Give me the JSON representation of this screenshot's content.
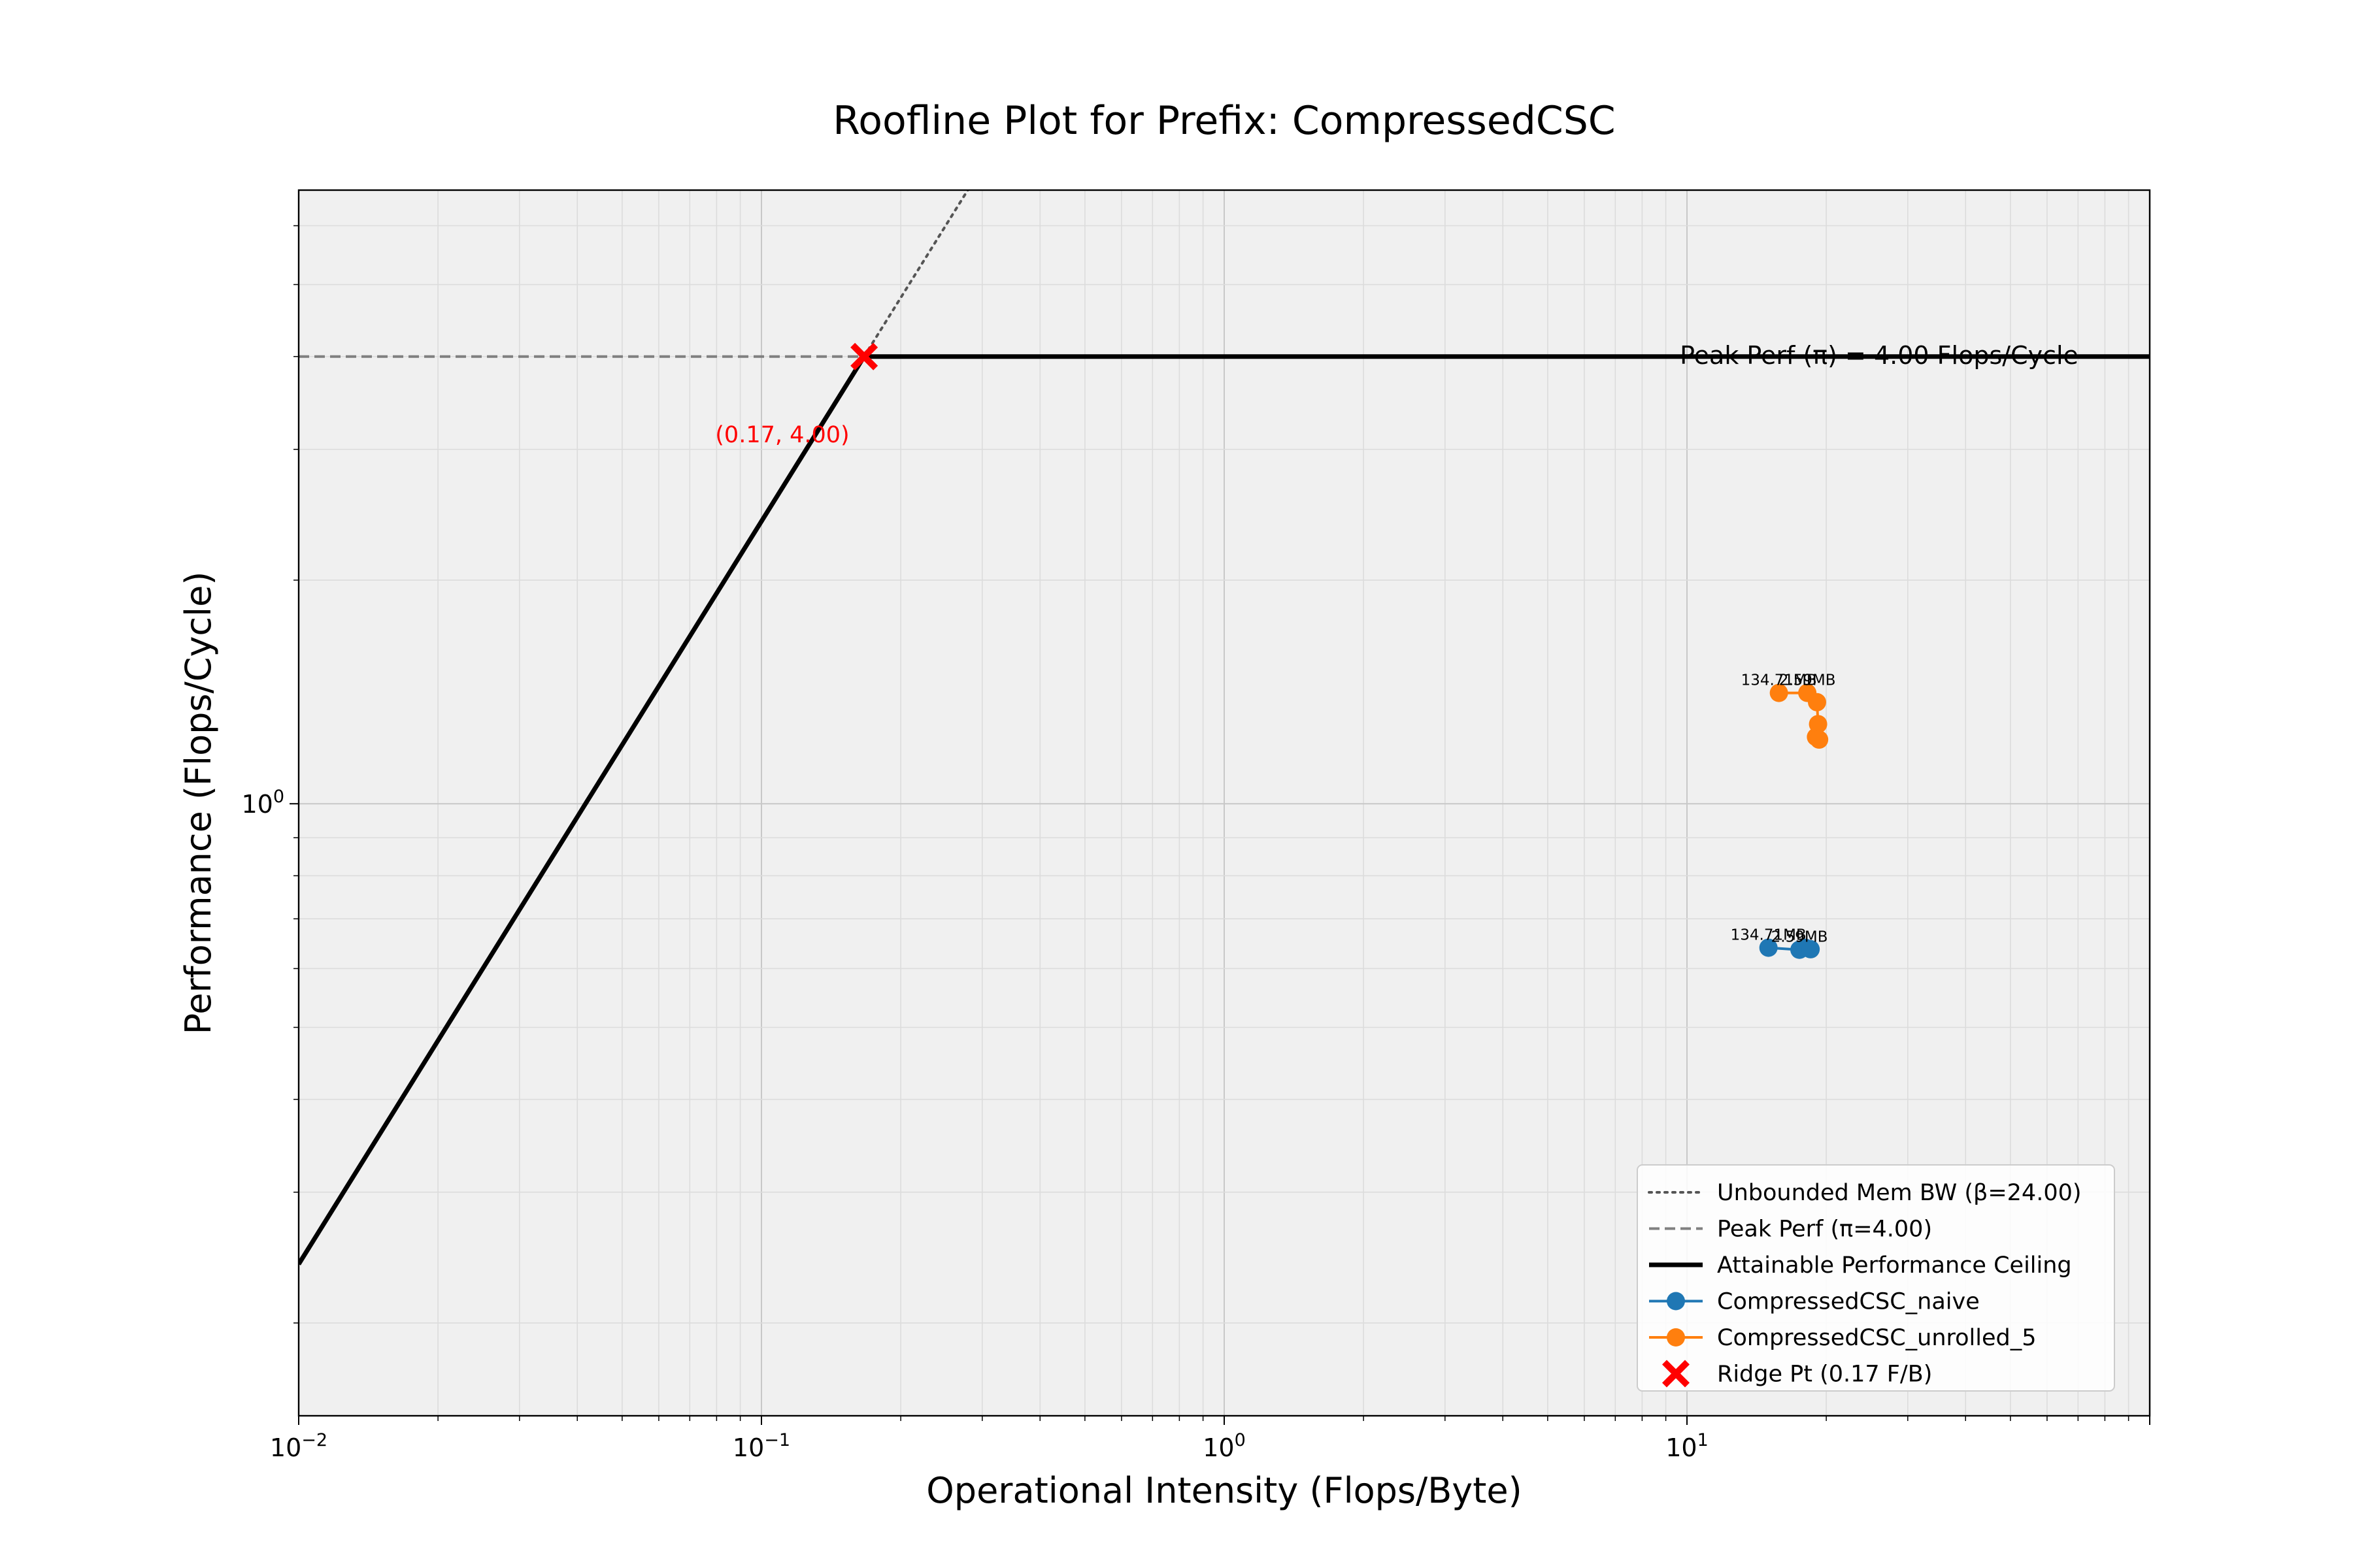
{
  "chart_data": {
    "type": "scatter",
    "title": "Roofline Plot for Prefix: CompressedCSC",
    "xlabel": "Operational Intensity (Flops/Byte)",
    "ylabel": "Performance (Flops/Cycle)",
    "xscale": "log",
    "yscale": "log",
    "xlim": [
      0.01,
      100
    ],
    "ylim": [
      0.15,
      6.7
    ],
    "grid": true,
    "plot_background": "#f0f0f0",
    "x_ticks": [
      {
        "value": 0.01,
        "base": "10",
        "exp": "−2"
      },
      {
        "value": 0.1,
        "base": "10",
        "exp": "−1"
      },
      {
        "value": 1,
        "base": "10",
        "exp": "0"
      },
      {
        "value": 10,
        "base": "10",
        "exp": "1"
      }
    ],
    "y_ticks": [
      {
        "value": 1,
        "base": "10",
        "exp": "0"
      }
    ],
    "peak_perf": 4.0,
    "mem_bw": 24.0,
    "ridge_point": {
      "x": 0.1667,
      "y": 4.0,
      "label": "(0.17, 4.00)"
    },
    "peak_annotation": "Peak Perf (π) = 4.00 Flops/Cycle",
    "series": [
      {
        "name": "CompressedCSC_naive",
        "color": "#1f77b4",
        "points": [
          {
            "x": 15.0,
            "y": 0.64,
            "label": "134.71MB"
          },
          {
            "x": 17.5,
            "y": 0.636,
            "label": "2.59MB"
          },
          {
            "x": 18.0,
            "y": 0.64,
            "label": ""
          },
          {
            "x": 18.5,
            "y": 0.637,
            "label": ""
          }
        ]
      },
      {
        "name": "CompressedCSC_unrolled_5",
        "color": "#ff7f0e",
        "points": [
          {
            "x": 15.8,
            "y": 1.41,
            "label": "134.71MB"
          },
          {
            "x": 18.2,
            "y": 1.41,
            "label": "2.59MB"
          },
          {
            "x": 19.1,
            "y": 1.37,
            "label": ""
          },
          {
            "x": 19.2,
            "y": 1.28,
            "label": ""
          },
          {
            "x": 19.0,
            "y": 1.23,
            "label": ""
          },
          {
            "x": 19.3,
            "y": 1.22,
            "label": ""
          }
        ]
      }
    ],
    "legend": {
      "position": "lower-right",
      "entries": [
        {
          "label": "Unbounded Mem BW (β=24.00)",
          "style": "dotted",
          "color": "#555555"
        },
        {
          "label": "Peak Perf (π=4.00)",
          "style": "dashed",
          "color": "#808080"
        },
        {
          "label": "Attainable Performance Ceiling",
          "style": "solid",
          "color": "#000000"
        },
        {
          "label": "CompressedCSC_naive",
          "style": "marker-line",
          "color": "#1f77b4"
        },
        {
          "label": "CompressedCSC_unrolled_5",
          "style": "marker-line",
          "color": "#ff7f0e"
        },
        {
          "label": "Ridge Pt (0.17 F/B)",
          "style": "x-marker",
          "color": "#ff0000"
        }
      ]
    }
  }
}
